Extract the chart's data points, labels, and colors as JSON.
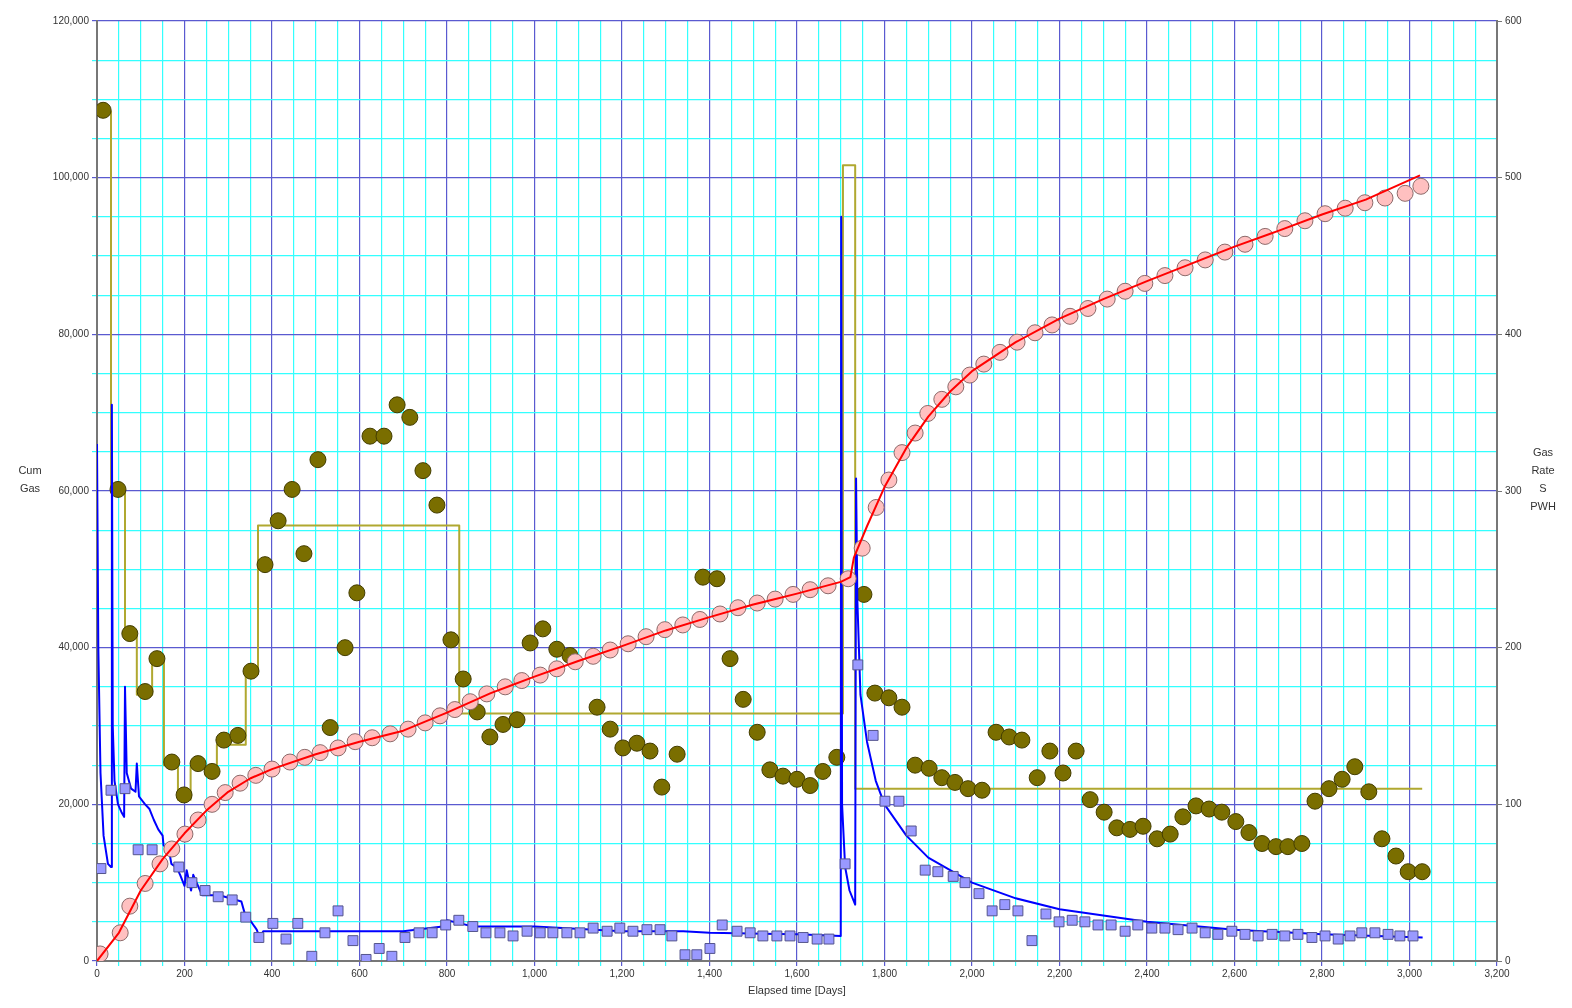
{
  "chart_data": {
    "type": "scatter",
    "xlabel": "Elapsed time [Days]",
    "ylabel": "Cum Gas",
    "y2label": "Gas Rate S PWH",
    "xlim": [
      0,
      3200
    ],
    "xticks": [
      0,
      {
        "value": 50,
        "label": null
      },
      {
        "value": 100,
        "label": null
      },
      {
        "value": 150,
        "label": null
      },
      200,
      {
        "value": 250,
        "label": null
      },
      {
        "value": 300,
        "label": null
      },
      {
        "value": 350,
        "label": null
      },
      400,
      {
        "value": 450,
        "label": null
      },
      {
        "value": 500,
        "label": null
      },
      {
        "value": 550,
        "label": null
      },
      600,
      {
        "value": 650,
        "label": null
      },
      {
        "value": 700,
        "label": null
      },
      {
        "value": 750,
        "label": null
      },
      800,
      {
        "value": 850,
        "label": null
      },
      {
        "value": 900,
        "label": null
      },
      {
        "value": 950,
        "label": null
      },
      {
        "value": 1000,
        "label": "1,000"
      },
      {
        "value": 1050,
        "label": null
      },
      {
        "value": 1100,
        "label": null
      },
      {
        "value": 1150,
        "label": null
      },
      {
        "value": 1200,
        "label": "1,200"
      },
      {
        "value": 1250,
        "label": null
      },
      {
        "value": 1300,
        "label": null
      },
      {
        "value": 1350,
        "label": null
      },
      {
        "value": 1400,
        "label": "1,400"
      },
      {
        "value": 1450,
        "label": null
      },
      {
        "value": 1500,
        "label": null
      },
      {
        "value": 1550,
        "label": null
      },
      {
        "value": 1600,
        "label": "1,600"
      },
      {
        "value": 1650,
        "label": null
      },
      {
        "value": 1700,
        "label": null
      },
      {
        "value": 1750,
        "label": null
      },
      {
        "value": 1800,
        "label": "1,800"
      },
      {
        "value": 1850,
        "label": null
      },
      {
        "value": 1900,
        "label": null
      },
      {
        "value": 1950,
        "label": null
      },
      {
        "value": 2000,
        "label": "2,000"
      },
      {
        "value": 2050,
        "label": null
      },
      {
        "value": 2100,
        "label": null
      },
      {
        "value": 2150,
        "label": null
      },
      {
        "value": 2200,
        "label": "2,200"
      },
      {
        "value": 2250,
        "label": null
      },
      {
        "value": 2300,
        "label": null
      },
      {
        "value": 2350,
        "label": null
      },
      {
        "value": 2400,
        "label": "2,400"
      },
      {
        "value": 2450,
        "label": null
      },
      {
        "value": 2500,
        "label": null
      },
      {
        "value": 2550,
        "label": null
      },
      {
        "value": 2600,
        "label": "2,600"
      },
      {
        "value": 2650,
        "label": null
      },
      {
        "value": 2700,
        "label": null
      },
      {
        "value": 2750,
        "label": null
      },
      {
        "value": 2800,
        "label": "2,800"
      },
      {
        "value": 2850,
        "label": null
      },
      {
        "value": 2900,
        "label": null
      },
      {
        "value": 2950,
        "label": null
      },
      {
        "value": 3000,
        "label": "3,000"
      },
      {
        "value": 3050,
        "label": null
      },
      {
        "value": 3100,
        "label": null
      },
      {
        "value": 3150,
        "label": null
      },
      {
        "value": 3200,
        "label": "3,200"
      }
    ],
    "ylim": [
      0,
      120000
    ],
    "yticks": [
      0,
      {
        "value": 5000,
        "label": null
      },
      {
        "value": 10000,
        "label": null
      },
      {
        "value": 15000,
        "label": null
      },
      {
        "value": 20000,
        "label": "20,000"
      },
      {
        "value": 25000,
        "label": null
      },
      {
        "value": 30000,
        "label": null
      },
      {
        "value": 35000,
        "label": null
      },
      {
        "value": 40000,
        "label": "40,000"
      },
      {
        "value": 45000,
        "label": null
      },
      {
        "value": 50000,
        "label": null
      },
      {
        "value": 55000,
        "label": null
      },
      {
        "value": 60000,
        "label": "60,000"
      },
      {
        "value": 65000,
        "label": null
      },
      {
        "value": 70000,
        "label": null
      },
      {
        "value": 75000,
        "label": null
      },
      {
        "value": 80000,
        "label": "80,000"
      },
      {
        "value": 85000,
        "label": null
      },
      {
        "value": 90000,
        "label": null
      },
      {
        "value": 95000,
        "label": null
      },
      {
        "value": 100000,
        "label": "100,000"
      },
      {
        "value": 105000,
        "label": null
      },
      {
        "value": 110000,
        "label": null
      },
      {
        "value": 115000,
        "label": null
      },
      {
        "value": 120000,
        "label": "120,000"
      }
    ],
    "y2lim": [
      0,
      600
    ],
    "y2ticks": [
      0,
      100,
      200,
      300,
      400,
      500,
      600
    ],
    "grid": true,
    "legend": false,
    "series": [
      {
        "type": "step",
        "axis": "y2",
        "color": "#b0a830",
        "x": [
          0,
          32,
          64,
          91,
          126,
          153,
          185,
          214,
          247,
          274,
          340,
          368,
          828,
          1705,
          1733,
          3029
        ],
        "values": [
          542,
          299,
          207,
          170,
          191,
          125,
          103,
          124,
          119,
          138,
          183,
          278,
          158,
          508,
          110,
          110
        ]
      },
      {
        "type": "scatter",
        "axis": "y2",
        "marker": "circle",
        "color": "#7a6e00",
        "x": [
          14,
          48,
          75,
          110,
          137,
          171,
          199,
          231,
          263,
          290,
          322,
          352,
          384,
          414,
          446,
          473,
          505,
          533,
          567,
          594,
          624,
          656,
          686,
          715,
          745,
          777,
          809,
          837,
          869,
          898,
          928,
          960,
          990,
          1019,
          1051,
          1081,
          1143,
          1173,
          1202,
          1234,
          1264,
          1291,
          1326,
          1385,
          1417,
          1447,
          1477,
          1509,
          1538,
          1568,
          1600,
          1630,
          1659,
          1691,
          1753,
          1778,
          1810,
          1840,
          1870,
          1902,
          1931,
          1961,
          1991,
          2023,
          2055,
          2085,
          2114,
          2149,
          2178,
          2208,
          2238,
          2270,
          2302,
          2331,
          2361,
          2391,
          2423,
          2453,
          2482,
          2512,
          2542,
          2571,
          2603,
          2633,
          2663,
          2695,
          2722,
          2754,
          2784,
          2816,
          2846,
          2875,
          2907,
          2937,
          2969,
          2997,
          3029
        ],
        "values": [
          543,
          301,
          209,
          172,
          193,
          127,
          106,
          126,
          121,
          141,
          144,
          185,
          253,
          281,
          301,
          260,
          320,
          149,
          200,
          235,
          335,
          335,
          355,
          347,
          313,
          291,
          205,
          180,
          159,
          143,
          151,
          154,
          203,
          212,
          199,
          195,
          162,
          148,
          136,
          139,
          134,
          111,
          132,
          245,
          244,
          193,
          167,
          146,
          122,
          118,
          116,
          112,
          121,
          130,
          234,
          171,
          168,
          162,
          125,
          123,
          117,
          114,
          110,
          109,
          146,
          143,
          141,
          117,
          134,
          120,
          134,
          103,
          95,
          85,
          84,
          86,
          78,
          81,
          92,
          99,
          97,
          95,
          89,
          82,
          75,
          73,
          73,
          75,
          102,
          110,
          116,
          124,
          108,
          78,
          67,
          57,
          57
        ]
      },
      {
        "type": "line",
        "axis": "y2",
        "color": "#0000ff",
        "x": [
          0,
          3,
          8,
          15,
          25,
          32,
          34,
          36,
          40,
          48,
          56,
          62,
          64,
          68,
          78,
          88,
          91,
          96,
          110,
          120,
          130,
          140,
          150,
          152,
          165,
          170,
          180,
          185,
          190,
          200,
          205,
          215,
          220,
          240,
          280,
          330,
          340,
          350,
          365,
          372,
          380,
          500,
          700,
          790,
          800,
          830,
          860,
          1000,
          1200,
          1340,
          1400,
          1600,
          1700,
          1701,
          1703,
          1710,
          1720,
          1733,
          1735,
          1738,
          1745,
          1760,
          1780,
          1800,
          1850,
          1900,
          2000,
          2100,
          2200,
          2400,
          2600,
          2800,
          3030
        ],
        "values": [
          330,
          200,
          120,
          80,
          62,
          60,
          355,
          150,
          115,
          100,
          95,
          92,
          175,
          120,
          110,
          108,
          126,
          105,
          100,
          97,
          90,
          84,
          80,
          74,
          70,
          62,
          60,
          58,
          55,
          48,
          58,
          45,
          55,
          42,
          42,
          38,
          28,
          26,
          20,
          15,
          19,
          19,
          19,
          22,
          26,
          24,
          22,
          22,
          19,
          19,
          18,
          17,
          16,
          475,
          100,
          60,
          45,
          36,
          308,
          230,
          170,
          140,
          115,
          100,
          80,
          66,
          50,
          40,
          33,
          25,
          20,
          17,
          15
        ]
      },
      {
        "type": "scatter",
        "axis": "y2",
        "marker": "square",
        "color": "#9999ff",
        "x": [
          9,
          32,
          64,
          94,
          126,
          187,
          217,
          247,
          277,
          309,
          340,
          370,
          402,
          432,
          459,
          491,
          521,
          551,
          585,
          615,
          645,
          674,
          704,
          736,
          766,
          797,
          827,
          859,
          889,
          921,
          951,
          983,
          1013,
          1042,
          1074,
          1104,
          1134,
          1166,
          1195,
          1225,
          1257,
          1287,
          1314,
          1344,
          1371,
          1401,
          1429,
          1463,
          1493,
          1522,
          1554,
          1584,
          1614,
          1646,
          1673,
          1710,
          1739,
          1774,
          1801,
          1833,
          1861,
          1893,
          1922,
          1957,
          1984,
          2016,
          2046,
          2075,
          2105,
          2137,
          2169,
          2199,
          2229,
          2258,
          2288,
          2318,
          2350,
          2379,
          2411,
          2441,
          2471,
          2503,
          2533,
          2562,
          2594,
          2624,
          2654,
          2686,
          2715,
          2745,
          2777,
          2807,
          2837,
          2864,
          2891,
          2921,
          2951,
          2978,
          3008
        ],
        "values": [
          59,
          109,
          110,
          71,
          71,
          60,
          50,
          45,
          41,
          39,
          28,
          15,
          24,
          14,
          24,
          3,
          18,
          32,
          13,
          1,
          8,
          3,
          15,
          18,
          18,
          23,
          26,
          22,
          18,
          18,
          16,
          19,
          18,
          18,
          18,
          18,
          21,
          19,
          21,
          19,
          20,
          20,
          16,
          4,
          4,
          8,
          23,
          19,
          18,
          16,
          16,
          16,
          15,
          14,
          14,
          62,
          189,
          144,
          102,
          102,
          83,
          58,
          57,
          54,
          50,
          43,
          32,
          36,
          32,
          13,
          30,
          25,
          26,
          25,
          23,
          23,
          19,
          23,
          21,
          21,
          20,
          21,
          18,
          17,
          19,
          17,
          16,
          17,
          16,
          17,
          15,
          16,
          14,
          16,
          18,
          18,
          17,
          16,
          16
        ]
      },
      {
        "type": "scatter",
        "marker": "circle",
        "color": "#ffc0c0",
        "x": [
          7,
          53,
          75,
          110,
          144,
          171,
          201,
          231,
          263,
          293,
          327,
          363,
          400,
          441,
          475,
          510,
          551,
          590,
          629,
          670,
          711,
          750,
          784,
          818,
          853,
          891,
          933,
          971,
          1013,
          1051,
          1093,
          1134,
          1173,
          1214,
          1255,
          1298,
          1339,
          1378,
          1424,
          1465,
          1509,
          1550,
          1591,
          1630,
          1671,
          1717,
          1749,
          1781,
          1810,
          1840,
          1870,
          1899,
          1931,
          1963,
          1995,
          2027,
          2064,
          2103,
          2144,
          2183,
          2224,
          2265,
          2309,
          2350,
          2395,
          2441,
          2487,
          2533,
          2578,
          2624,
          2670,
          2715,
          2761,
          2807,
          2853,
          2898,
          2944,
          2990,
          3026
        ],
        "values": [
          900,
          3600,
          7000,
          9900,
          12400,
          14300,
          16200,
          18000,
          20000,
          21500,
          22700,
          23700,
          24500,
          25400,
          26000,
          26600,
          27200,
          28000,
          28500,
          29000,
          29600,
          30400,
          31300,
          32100,
          33100,
          34100,
          35000,
          35800,
          36500,
          37300,
          38200,
          38900,
          39700,
          40500,
          41400,
          42300,
          42900,
          43600,
          44300,
          45100,
          45700,
          46200,
          46800,
          47400,
          47900,
          48800,
          52700,
          57900,
          61400,
          64900,
          67400,
          69900,
          71700,
          73300,
          74800,
          76200,
          77700,
          79000,
          80200,
          81200,
          82300,
          83300,
          84500,
          85500,
          86500,
          87500,
          88500,
          89500,
          90500,
          91500,
          92500,
          93500,
          94500,
          95400,
          96100,
          96800,
          97400,
          98000,
          98900
        ]
      },
      {
        "type": "line",
        "color": "#ff0000",
        "x": [
          0,
          50,
          100,
          150,
          200,
          250,
          300,
          350,
          400,
          500,
          600,
          700,
          800,
          900,
          1000,
          1100,
          1200,
          1300,
          1400,
          1500,
          1600,
          1700,
          1722,
          1730,
          1760,
          1800,
          1850,
          1900,
          1950,
          2000,
          2100,
          2200,
          2300,
          2400,
          2500,
          2600,
          2700,
          2800,
          2900,
          3024
        ],
        "values": [
          0,
          3600,
          9000,
          13000,
          16300,
          19200,
          21600,
          23300,
          24500,
          26400,
          28000,
          29400,
          31700,
          34200,
          36300,
          38300,
          40200,
          42200,
          43900,
          45500,
          46900,
          48400,
          49000,
          51500,
          55500,
          60500,
          65500,
          69500,
          72700,
          75300,
          79000,
          82000,
          84500,
          86800,
          89000,
          91200,
          93200,
          95300,
          97200,
          100300
        ]
      }
    ]
  }
}
